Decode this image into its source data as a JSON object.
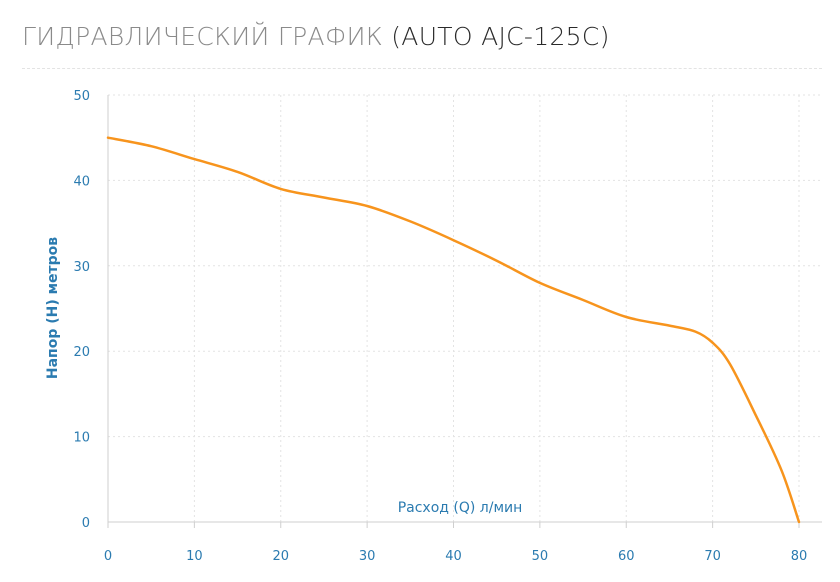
{
  "header": {
    "title_main": "ГИДРАВЛИЧЕСКИЙ ГРАФИК",
    "title_model": "(AUTO AJC-125C)"
  },
  "colors": {
    "line": "#f7941d",
    "axis_text": "#2b7bb0",
    "grid": "#e3e3e3"
  },
  "chart_data": {
    "type": "line",
    "title": "ГИДРАВЛИЧЕСКИЙ ГРАФИК (AUTO AJC-125C)",
    "xlabel": "Расход (Q) л/мин",
    "ylabel": "Напор (H) метров",
    "xlim": [
      0,
      80
    ],
    "ylim": [
      0,
      50
    ],
    "x_ticks": [
      0,
      10,
      20,
      30,
      40,
      50,
      60,
      70,
      80
    ],
    "y_ticks": [
      0,
      10,
      20,
      30,
      40,
      50
    ],
    "grid": true,
    "series": [
      {
        "x": [
          0,
          5,
          10,
          15,
          20,
          25,
          30,
          35,
          40,
          45,
          50,
          55,
          60,
          65,
          68,
          70,
          72,
          75,
          78,
          80
        ],
        "y": [
          45,
          44,
          42.5,
          41,
          39,
          38,
          37,
          35.2,
          33,
          30.6,
          28,
          26,
          24,
          23,
          22.3,
          21,
          18.5,
          12.5,
          6,
          0
        ]
      }
    ]
  }
}
